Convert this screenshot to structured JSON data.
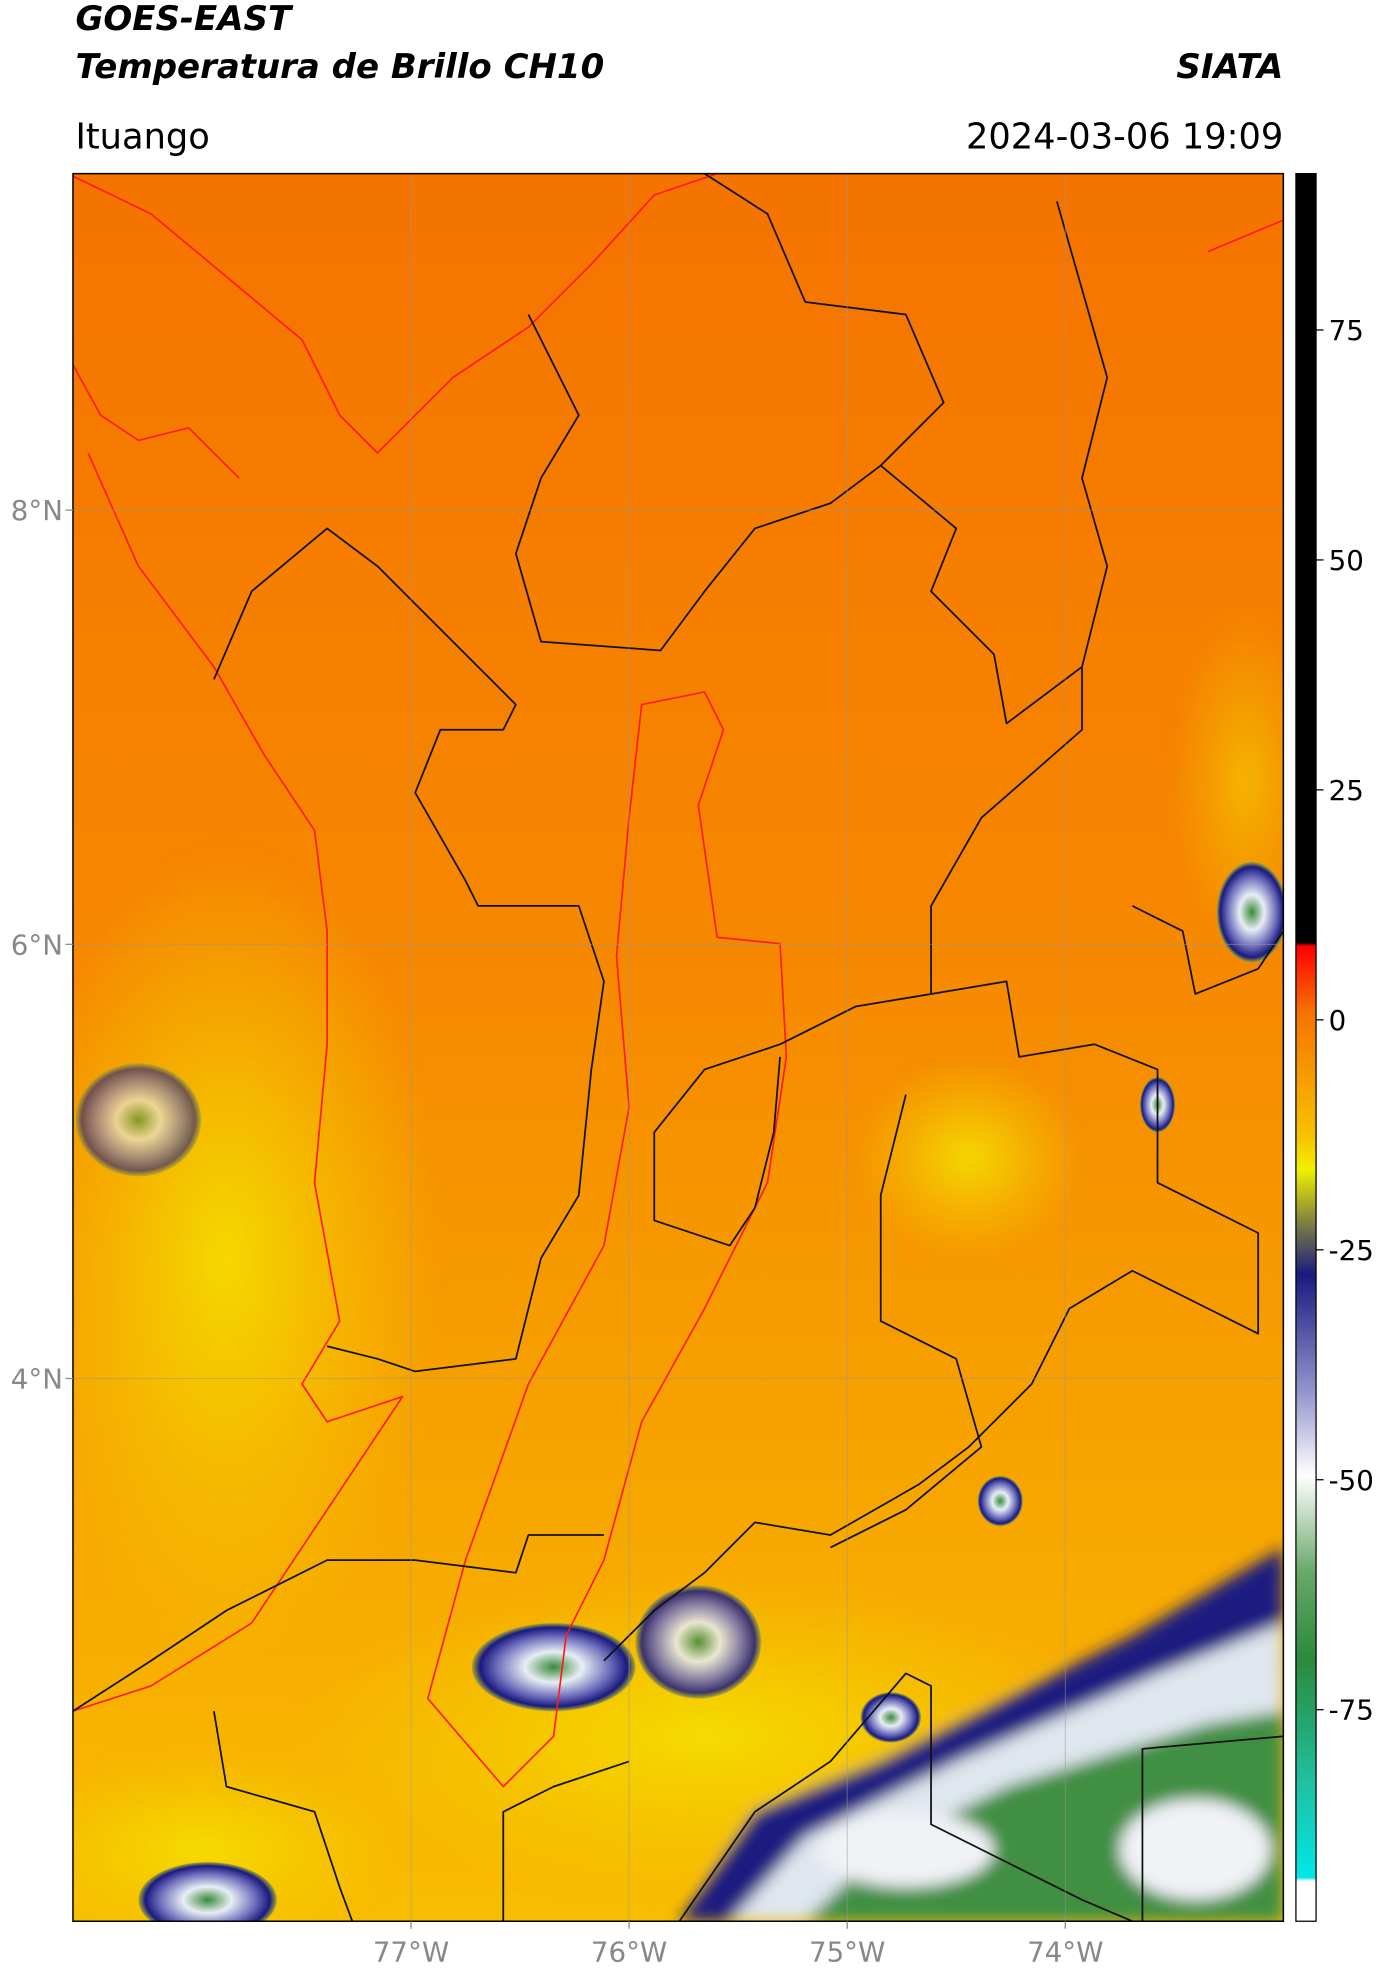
{
  "header": {
    "title": "GOES-EAST",
    "subtitle": "Temperatura de Brillo CH10",
    "source": "SIATA",
    "region": "Ituango",
    "datetime": "2024-03-06 19:09"
  },
  "map": {
    "lon_range": [
      -78.55,
      -73
    ],
    "lat_range": [
      1.5,
      9.55
    ],
    "grid": true,
    "lon_ticks": [
      {
        "value": -77,
        "label": "77°W"
      },
      {
        "value": -76,
        "label": "76°W"
      },
      {
        "value": -75,
        "label": "75°W"
      },
      {
        "value": -74,
        "label": "74°W"
      }
    ],
    "lat_ticks": [
      {
        "value": 8,
        "label": "8°N"
      },
      {
        "value": 6,
        "label": "6°N"
      },
      {
        "value": 4,
        "label": "4°N"
      }
    ]
  },
  "colorbar": {
    "range": [
      -98,
      92
    ],
    "ticks": [
      75,
      50,
      25,
      0,
      -25,
      -50,
      -75
    ]
  }
}
